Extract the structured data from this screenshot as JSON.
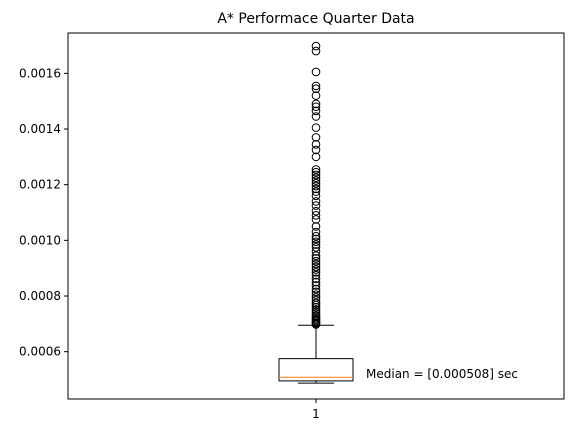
{
  "chart_data": {
    "type": "boxplot",
    "title": "A* Performace Quarter Data",
    "xlabel": "",
    "ylabel": "",
    "categories": [
      "1"
    ],
    "ylim": [
      0.00043,
      0.001745
    ],
    "yticks": [
      0.0006,
      0.0008,
      0.001,
      0.0012,
      0.0014,
      0.0016
    ],
    "ytick_labels": [
      "0.0006",
      "0.0008",
      "0.0010",
      "0.0012",
      "0.0014",
      "0.0016"
    ],
    "grid": false,
    "box": {
      "whisker_low": 0.000487,
      "q1": 0.000495,
      "median": 0.000508,
      "q3": 0.000575,
      "whisker_high": 0.000695
    },
    "outliers": [
      0.000698,
      0.000702,
      0.000705,
      0.00071,
      0.000715,
      0.00072,
      0.000725,
      0.00073,
      0.000738,
      0.000745,
      0.000752,
      0.00076,
      0.000768,
      0.000775,
      0.000785,
      0.000795,
      0.000805,
      0.000815,
      0.000825,
      0.000838,
      0.00085,
      0.000862,
      0.000875,
      0.000885,
      0.000895,
      0.000905,
      0.000915,
      0.000925,
      0.000935,
      0.000945,
      0.00096,
      0.000975,
      0.000985,
      0.000995,
      0.001005,
      0.001015,
      0.00103,
      0.00105,
      0.001075,
      0.00109,
      0.001105,
      0.001125,
      0.00114,
      0.00116,
      0.001175,
      0.001185,
      0.001195,
      0.001205,
      0.001215,
      0.001225,
      0.001235,
      0.001245,
      0.001255,
      0.0013,
      0.001325,
      0.001345,
      0.00137,
      0.001405,
      0.001445,
      0.001465,
      0.00148,
      0.00149,
      0.00152,
      0.001545,
      0.001555,
      0.001605,
      0.00168,
      0.001698
    ],
    "annotation": "Median = [0.000508] sec",
    "colors": {
      "box": "#000000",
      "median": "#ff7f0e",
      "outlier_edge": "#000000"
    }
  }
}
